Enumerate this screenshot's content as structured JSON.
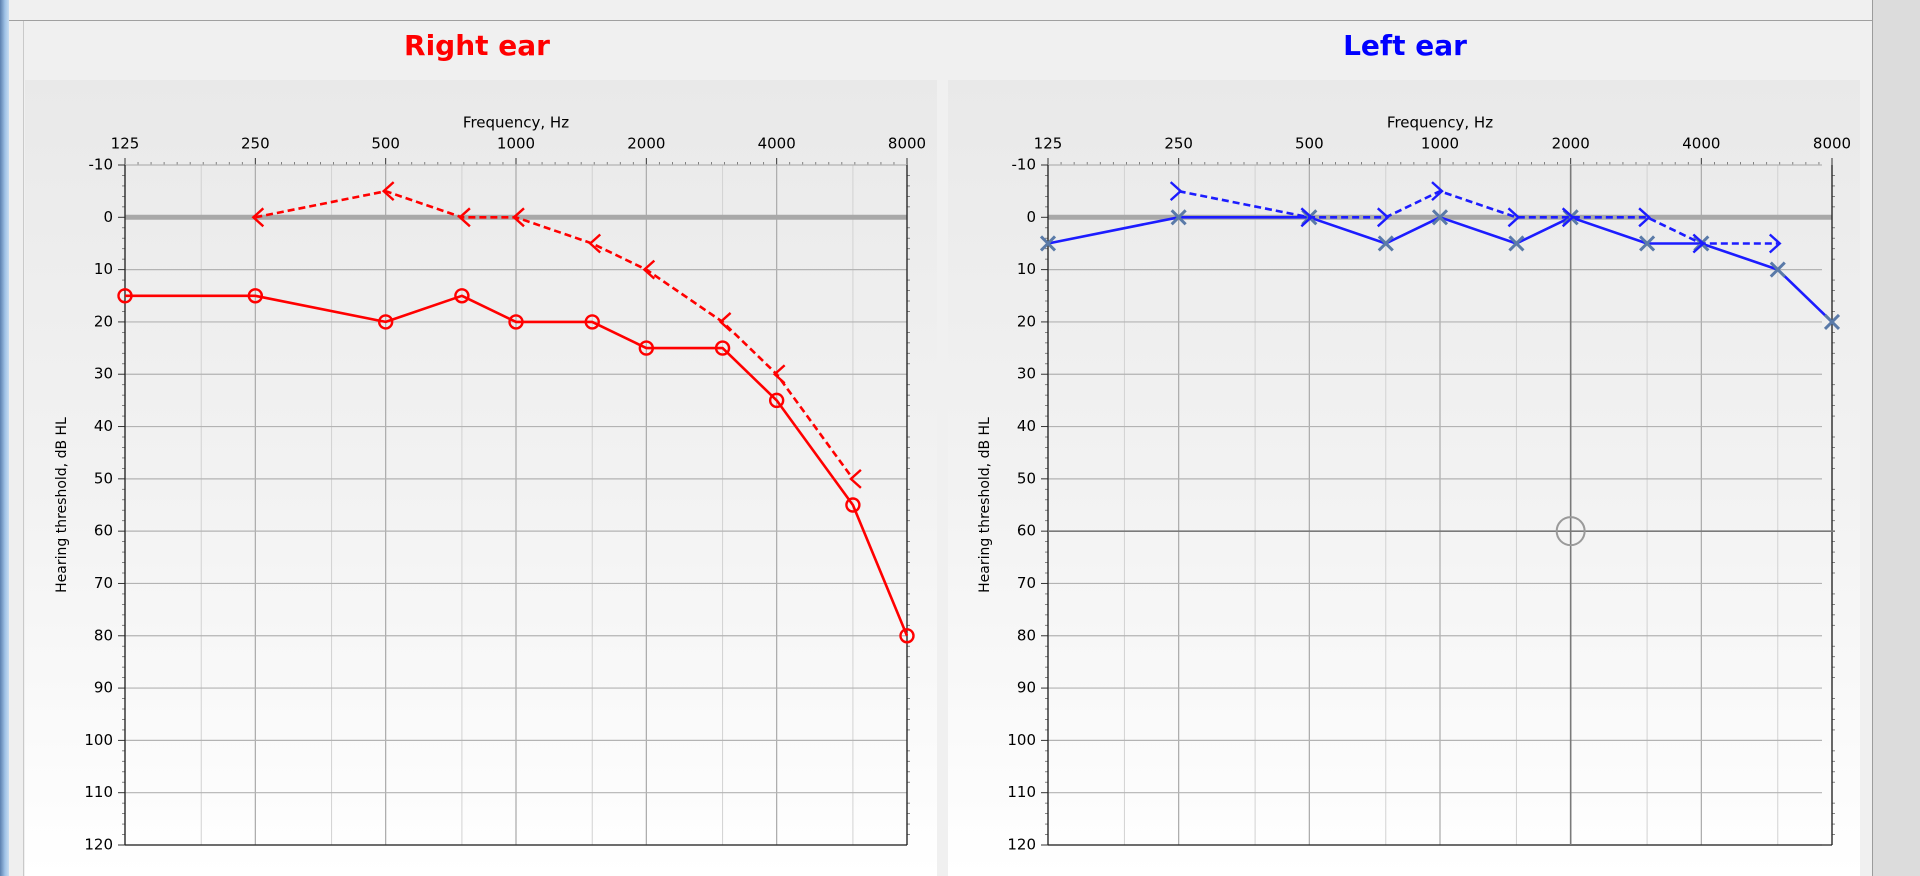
{
  "panels": [
    {
      "id": "right-ear",
      "title": "Right ear",
      "title_color": "#ff0000",
      "series_color": "#ff0000",
      "xlabel": "Frequency, Hz",
      "ylabel": "Hearing threshold, dB HL"
    },
    {
      "id": "left-ear",
      "title": "Left ear",
      "title_color": "#0000ff",
      "series_color": "#1c1cff",
      "xlabel": "Frequency, Hz",
      "ylabel": "Hearing threshold, dB HL"
    }
  ],
  "chart_data": [
    {
      "type": "line",
      "title": "Right ear",
      "xlabel": "Frequency, Hz",
      "ylabel": "Hearing threshold, dB HL",
      "x_scale": "log2",
      "x_ticks": [
        "125",
        "250",
        "500",
        "1000",
        "2000",
        "4000",
        "8000"
      ],
      "xlim": [
        125,
        8000
      ],
      "ylim": [
        -10,
        120
      ],
      "y_inverted": true,
      "y_ticks": [
        -10,
        0,
        10,
        20,
        30,
        40,
        50,
        60,
        70,
        80,
        90,
        100,
        110,
        120
      ],
      "reference_line_db": 0,
      "series": [
        {
          "marker": "circle",
          "line": "solid",
          "color": "#ff0000",
          "points": [
            {
              "x": 125,
              "y": 15
            },
            {
              "x": 250,
              "y": 15
            },
            {
              "x": 500,
              "y": 20
            },
            {
              "x": 750,
              "y": 15
            },
            {
              "x": 1000,
              "y": 20
            },
            {
              "x": 1500,
              "y": 20
            },
            {
              "x": 2000,
              "y": 25
            },
            {
              "x": 3000,
              "y": 25
            },
            {
              "x": 4000,
              "y": 35
            },
            {
              "x": 6000,
              "y": 55
            },
            {
              "x": 8000,
              "y": 80
            }
          ]
        },
        {
          "marker": "bone-left",
          "line": "dashed",
          "color": "#ff0000",
          "points": [
            {
              "x": 250,
              "y": 0
            },
            {
              "x": 500,
              "y": -5
            },
            {
              "x": 750,
              "y": 0
            },
            {
              "x": 1000,
              "y": 0
            },
            {
              "x": 1500,
              "y": 5
            },
            {
              "x": 2000,
              "y": 10
            },
            {
              "x": 3000,
              "y": 20
            },
            {
              "x": 4000,
              "y": 30
            },
            {
              "x": 6000,
              "y": 50
            }
          ]
        }
      ]
    },
    {
      "type": "line",
      "title": "Left ear",
      "xlabel": "Frequency, Hz",
      "ylabel": "Hearing threshold, dB HL",
      "x_scale": "log2",
      "x_ticks": [
        "125",
        "250",
        "500",
        "1000",
        "2000",
        "4000",
        "8000"
      ],
      "xlim": [
        125,
        8000
      ],
      "ylim": [
        -10,
        120
      ],
      "y_inverted": true,
      "y_ticks": [
        -10,
        0,
        10,
        20,
        30,
        40,
        50,
        60,
        70,
        80,
        90,
        100,
        110,
        120
      ],
      "reference_line_db": 0,
      "cursor": {
        "x": 2000,
        "y": 60
      },
      "series": [
        {
          "marker": "cross",
          "line": "solid",
          "color": "#1c1cff",
          "marker_color": "#5a7aa8",
          "points": [
            {
              "x": 125,
              "y": 5
            },
            {
              "x": 250,
              "y": 0
            },
            {
              "x": 500,
              "y": 0
            },
            {
              "x": 750,
              "y": 5
            },
            {
              "x": 1000,
              "y": 0
            },
            {
              "x": 1500,
              "y": 5
            },
            {
              "x": 2000,
              "y": 0
            },
            {
              "x": 3000,
              "y": 5
            },
            {
              "x": 4000,
              "y": 5
            },
            {
              "x": 6000,
              "y": 10
            },
            {
              "x": 8000,
              "y": 20
            }
          ]
        },
        {
          "marker": "bone-right",
          "line": "dashed",
          "color": "#1c1cff",
          "points": [
            {
              "x": 250,
              "y": -5
            },
            {
              "x": 500,
              "y": 0
            },
            {
              "x": 750,
              "y": 0
            },
            {
              "x": 1000,
              "y": -5
            },
            {
              "x": 1500,
              "y": 0
            },
            {
              "x": 2000,
              "y": 0
            },
            {
              "x": 3000,
              "y": 0
            },
            {
              "x": 4000,
              "y": 5
            },
            {
              "x": 6000,
              "y": 5
            }
          ]
        }
      ]
    }
  ]
}
